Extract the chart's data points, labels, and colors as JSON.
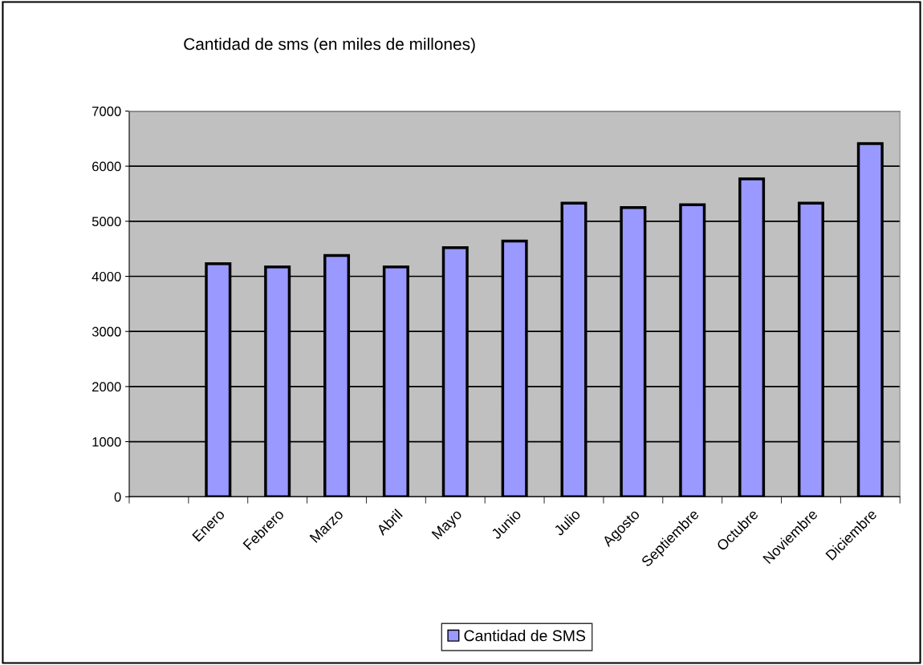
{
  "chart_data": {
    "type": "bar",
    "title": "Cantidad de sms (en miles de millones)",
    "categories": [
      null,
      "Enero",
      "Febrero",
      "Marzo",
      "Abril",
      "Mayo",
      "Junio",
      "Julio",
      "Agosto",
      "Septiembre",
      "Octubre",
      "Noviembre",
      "Diciembre"
    ],
    "series": [
      {
        "name": "Cantidad de SMS",
        "color": "#9999ff",
        "values": [
          null,
          4230,
          4170,
          4380,
          4170,
          4520,
          4640,
          5330,
          5250,
          5300,
          5770,
          5330,
          6410
        ]
      }
    ],
    "ylim": [
      0,
      7000
    ],
    "yticks": [
      0,
      1000,
      2000,
      3000,
      4000,
      5000,
      6000,
      7000
    ],
    "grid": "y",
    "legend": "bottom"
  }
}
